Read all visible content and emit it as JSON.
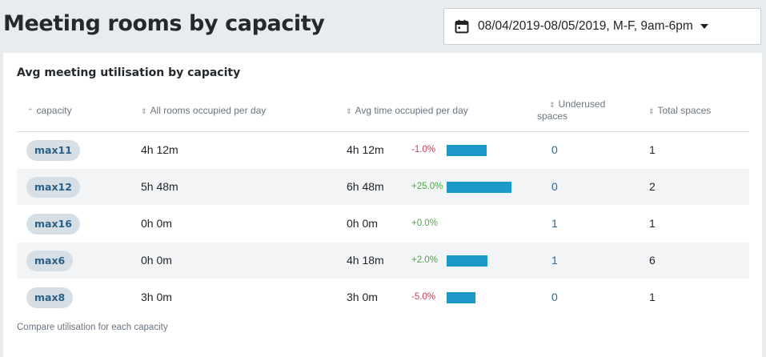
{
  "header": {
    "title": "Meeting rooms by capacity",
    "date_range": "08/04/2019-08/05/2019, M-F, 9am-6pm"
  },
  "card": {
    "title": "Avg meeting utilisation by capacity",
    "footnote": "Compare utilisation for each capacity"
  },
  "table": {
    "columns": [
      {
        "label": "capacity",
        "sort_icon": "sort-asc-icon"
      },
      {
        "label": "All rooms occupied per day",
        "sort_icon": "sort-both-icon"
      },
      {
        "label": "Avg time occupied per day",
        "sort_icon": "sort-both-icon"
      },
      {
        "label": "Underused",
        "label2": "spaces",
        "sort_icon": "sort-both-icon"
      },
      {
        "label": "Total spaces",
        "sort_icon": "sort-both-icon"
      }
    ],
    "rows": [
      {
        "capacity": "max11",
        "all_rooms": "4h 12m",
        "avg_time": "4h 12m",
        "change": "-1.0%",
        "change_sign": "neg",
        "bar_fraction": 0.6,
        "underused": "0",
        "total": "1"
      },
      {
        "capacity": "max12",
        "all_rooms": "5h 48m",
        "avg_time": "6h 48m",
        "change": "+25.0%",
        "change_sign": "pos",
        "bar_fraction": 0.97,
        "underused": "0",
        "total": "2"
      },
      {
        "capacity": "max16",
        "all_rooms": "0h 0m",
        "avg_time": "0h 0m",
        "change": "+0.0%",
        "change_sign": "pos",
        "bar_fraction": 0.0,
        "underused": "1",
        "total": "1"
      },
      {
        "capacity": "max6",
        "all_rooms": "0h 0m",
        "avg_time": "4h 18m",
        "change": "+2.0%",
        "change_sign": "pos",
        "bar_fraction": 0.61,
        "underused": "1",
        "total": "6"
      },
      {
        "capacity": "max8",
        "all_rooms": "3h 0m",
        "avg_time": "3h 0m",
        "change": "-5.0%",
        "change_sign": "neg",
        "bar_fraction": 0.43,
        "underused": "0",
        "total": "1"
      }
    ]
  },
  "colors": {
    "bar": "#1d99c9",
    "negative": "#c9405a",
    "positive": "#4fa64a",
    "link": "#2b6a9a"
  }
}
